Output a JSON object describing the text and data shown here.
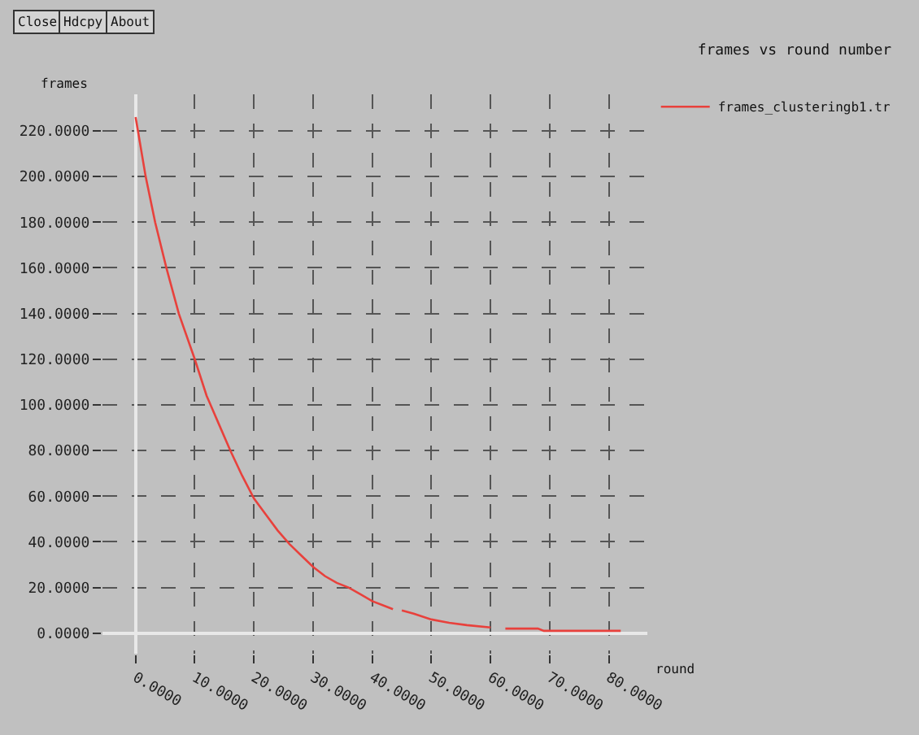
{
  "chart_data": {
    "type": "line",
    "title": "frames vs round number",
    "xlabel": "round",
    "ylabel": "frames",
    "annotations": [
      "Close",
      "Hdcpy",
      "About"
    ],
    "x": [
      0,
      1.7,
      3.3,
      5.2,
      7.3,
      10,
      12,
      14,
      16,
      18,
      20,
      22,
      24,
      26,
      28,
      30,
      32,
      34,
      36,
      38,
      40,
      42,
      43.5,
      44,
      45,
      47,
      50,
      53,
      56,
      60,
      61,
      62.5,
      68,
      69,
      82
    ],
    "series": [
      {
        "name": "frames_clusteringb1.tr",
        "color": "#e8413c",
        "values": [
          226,
          200,
          180,
          160,
          140,
          120,
          104,
          92,
          80,
          69,
          59,
          52,
          45,
          39,
          34,
          29,
          25,
          22,
          20,
          17,
          14,
          12,
          10.5,
          null,
          10,
          8.5,
          6,
          4.5,
          3.5,
          2.5,
          null,
          2,
          2,
          1,
          1
        ]
      }
    ],
    "xlim": [
      -5.6,
      86.5
    ],
    "ylim": [
      -9,
      236
    ],
    "xticks": [
      {
        "value": 0,
        "label": "0.0000"
      },
      {
        "value": 10,
        "label": "10.0000"
      },
      {
        "value": 20,
        "label": "20.0000"
      },
      {
        "value": 30,
        "label": "30.0000"
      },
      {
        "value": 40,
        "label": "40.0000"
      },
      {
        "value": 50,
        "label": "50.0000"
      },
      {
        "value": 60,
        "label": "60.0000"
      },
      {
        "value": 70,
        "label": "70.0000"
      },
      {
        "value": 80,
        "label": "80.0000"
      }
    ],
    "yticks": [
      {
        "value": 0,
        "label": "0.0000"
      },
      {
        "value": 20,
        "label": "20.0000"
      },
      {
        "value": 40,
        "label": "40.0000"
      },
      {
        "value": 60,
        "label": "60.0000"
      },
      {
        "value": 80,
        "label": "80.0000"
      },
      {
        "value": 100,
        "label": "100.0000"
      },
      {
        "value": 120,
        "label": "120.0000"
      },
      {
        "value": 140,
        "label": "140.0000"
      },
      {
        "value": 160,
        "label": "160.0000"
      },
      {
        "value": 180,
        "label": "180.0000"
      },
      {
        "value": 200,
        "label": "200.0000"
      },
      {
        "value": 220,
        "label": "220.0000"
      }
    ],
    "grid": true,
    "legend": "top right",
    "marker": "none",
    "line_style": "solid"
  }
}
